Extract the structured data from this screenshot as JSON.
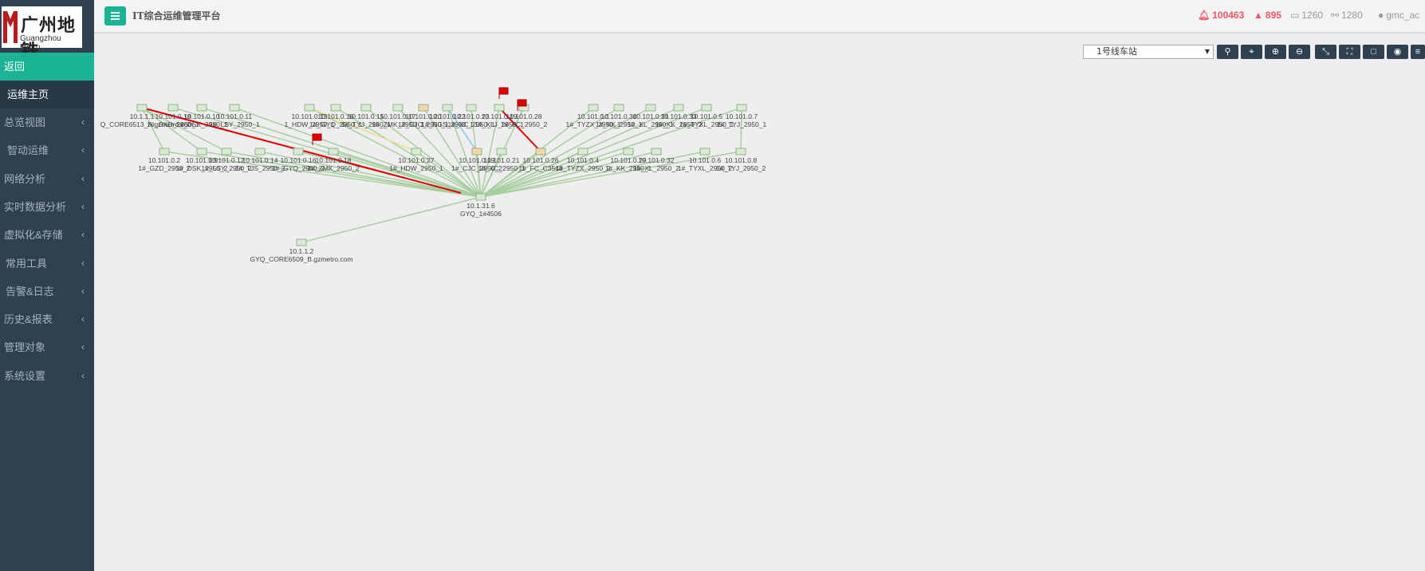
{
  "logo": {
    "text": "广州地铁",
    "subtitle": "Guangzhou Metro"
  },
  "sidebar": {
    "items": [
      {
        "label": "返回"
      },
      {
        "label": "运维主页"
      },
      {
        "label": "总览视图"
      },
      {
        "label": "智动运维"
      },
      {
        "label": "网络分析"
      },
      {
        "label": "实时数据分析"
      },
      {
        "label": "虚拟化&存储"
      },
      {
        "label": "常用工具"
      },
      {
        "label": "告警&日志"
      },
      {
        "label": "历史&报表"
      },
      {
        "label": "管理对象"
      },
      {
        "label": "系统设置"
      }
    ]
  },
  "header": {
    "title": "IT综合运维管理平台",
    "alarms": "100463",
    "warnings": "895",
    "devices": "1260",
    "links": "1280",
    "user": "gmc_ac"
  },
  "toolbar": {
    "station": "1号线车站"
  },
  "colors": {
    "accent": "#1ab394",
    "sidebar": "#2f4050",
    "alarm": "#ed5565",
    "link": "#a8cfa0",
    "fault_link": "#e00000"
  },
  "topology": {
    "nodes": [
      {
        "ip": "10.1.1.1",
        "name": "GYQ_CORE6513_A.gzmetro.com",
        "role": "core"
      },
      {
        "ip": "10.101.0.18",
        "name": "1#_GXD_2950_1"
      },
      {
        "ip": "10.101.0.10",
        "name": "1#_DSK_2950_1"
      },
      {
        "ip": "10.101.0.11",
        "name": "1#_LSY_2950_1"
      },
      {
        "ip": "10.101.0.13",
        "name": "1_HDW_2950_1"
      },
      {
        "ip": "10.101.0.16",
        "name": "1#_GYQ_2950_1"
      },
      {
        "ip": "10.101.0.15",
        "name": "1#_TYJ_2950_1"
      },
      {
        "ip": "10.101.0.17",
        "name": "1#_ZMK_2950_1"
      },
      {
        "ip": "10.101.0.20",
        "name": "1#_CJC_2950_1"
      },
      {
        "ip": "10.101.0.22",
        "name": "1#_NGS_2950_1"
      },
      {
        "ip": "10.101.0.23",
        "name": "1#_XC_2950_1"
      },
      {
        "ip": "10.101.0.19",
        "name": "1#_XLJ_2950_1"
      },
      {
        "ip": "10.101.0.28",
        "name": "1#_FC_2950_2"
      },
      {
        "ip": "10.101.0.1",
        "name": "1#_TYZX_2950_1"
      },
      {
        "ip": "10.101.0.30",
        "name": "1#_KK_2950_1"
      },
      {
        "ip": "10.101.0.31",
        "name": "1#_XL_2950_1"
      },
      {
        "ip": "10.101.0.33",
        "name": "1#_KK_2950_2"
      },
      {
        "ip": "10.101.0.5",
        "name": "1#_TYXL_2950_1"
      },
      {
        "ip": "10.101.0.7",
        "name": "1#_TYJ_2950_1"
      },
      {
        "ip": "10.101.0.2",
        "name": "1#_GZD_2950_2"
      },
      {
        "ip": "10.101.0.9",
        "name": "1#_DSK_2950_2"
      },
      {
        "ip": "10.101.0.12",
        "name": "1#_LSY_2950_2"
      },
      {
        "ip": "10.101.0.14",
        "name": "1#_TJS_2950_2"
      },
      {
        "ip": "10.101.0.16",
        "name": "1#_GYQ_2950_2"
      },
      {
        "ip": "10.101.0.18",
        "name": "1#_ZMK_2950_2"
      },
      {
        "ip": "10.101.0.27",
        "name": "1#_HDW_2950_1"
      },
      {
        "ip": "10.101.0.19",
        "name": "1#_CJC_2950_2"
      },
      {
        "ip": "10.101.0.21",
        "name": "1#_XC_2950_1"
      },
      {
        "ip": "10.101.0.26",
        "name": "1#_FC_C3548"
      },
      {
        "ip": "10.101.0.4",
        "name": "1#_TYZX_2950_2"
      },
      {
        "ip": "10.101.0.29",
        "name": "1#_KK_2950_1"
      },
      {
        "ip": "10.101.0.32",
        "name": "1#_XL_2950_2"
      },
      {
        "ip": "10.101.0.6",
        "name": "1#_TYXL_2950_2"
      },
      {
        "ip": "10.101.0.8",
        "name": "1#_TYJ_2950_2"
      },
      {
        "ip": "10.1.31.6",
        "name": "GYQ_1#4506",
        "role": "hub"
      },
      {
        "ip": "10.1.1.2",
        "name": "GYQ_CORE6509_B.gzmetro.com",
        "role": "core"
      }
    ]
  }
}
